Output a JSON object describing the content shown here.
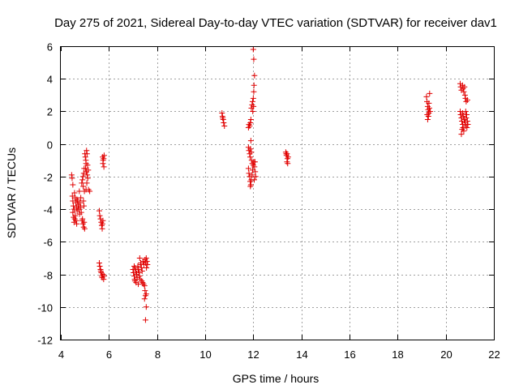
{
  "chart_data": {
    "type": "scatter",
    "title": "Day 275 of 2021, Sidereal Day-to-day VTEC variation (SDTVAR) for receiver dav1",
    "xlabel": "GPS time / hours",
    "ylabel": "SDTVAR / TECUs",
    "xlim": [
      4,
      22
    ],
    "ylim": [
      -12,
      6
    ],
    "xticks": [
      4,
      6,
      8,
      10,
      12,
      14,
      16,
      18,
      20,
      22
    ],
    "xtick_labels": [
      "4",
      "6",
      "8",
      "10",
      "12",
      "14",
      "16",
      "18",
      "20",
      "22"
    ],
    "yticks": [
      -12,
      -10,
      -8,
      -6,
      -4,
      -2,
      0,
      2,
      4,
      6
    ],
    "ytick_labels": [
      "-12",
      "-10",
      "-8",
      "-6",
      "-4",
      "-2",
      "0",
      "2",
      "4",
      "6"
    ],
    "grid": true,
    "marker": "+",
    "color": "#e00000",
    "series": [
      {
        "name": "dav1",
        "points": [
          [
            4.45,
            -1.9
          ],
          [
            4.47,
            -2.1
          ],
          [
            4.5,
            -2.5
          ],
          [
            4.48,
            -3.2
          ],
          [
            4.5,
            -3.5
          ],
          [
            4.52,
            -3.8
          ],
          [
            4.55,
            -4.0
          ],
          [
            4.5,
            -4.2
          ],
          [
            4.53,
            -4.5
          ],
          [
            4.55,
            -4.8
          ],
          [
            4.6,
            -3.3
          ],
          [
            4.62,
            -3.6
          ],
          [
            4.65,
            -3.9
          ],
          [
            4.68,
            -4.1
          ],
          [
            4.6,
            -4.4
          ],
          [
            4.63,
            -4.7
          ],
          [
            4.7,
            -3.5
          ],
          [
            4.72,
            -3.8
          ],
          [
            4.75,
            -4.0
          ],
          [
            4.78,
            -4.3
          ],
          [
            4.8,
            -3.6
          ],
          [
            4.82,
            -3.9
          ],
          [
            4.85,
            -4.2
          ],
          [
            4.57,
            -3.0
          ],
          [
            4.67,
            -3.4
          ],
          [
            4.73,
            -3.7
          ],
          [
            4.77,
            -2.9
          ],
          [
            4.83,
            -3.3
          ],
          [
            4.58,
            -4.6
          ],
          [
            4.66,
            -4.9
          ],
          [
            4.87,
            -2.4
          ],
          [
            4.9,
            -2.2
          ],
          [
            4.92,
            -2.0
          ],
          [
            4.95,
            -1.8
          ],
          [
            4.97,
            -1.5
          ],
          [
            4.93,
            -2.6
          ],
          [
            4.98,
            -2.9
          ],
          [
            4.94,
            -3.5
          ],
          [
            4.96,
            -3.8
          ],
          [
            4.88,
            -4.7
          ],
          [
            4.92,
            -4.9
          ],
          [
            4.95,
            -5.1
          ],
          [
            4.99,
            -5.2
          ],
          [
            4.9,
            -4.6
          ],
          [
            4.97,
            -4.8
          ],
          [
            5.0,
            -0.6
          ],
          [
            5.02,
            -0.8
          ],
          [
            5.04,
            -1.0
          ],
          [
            5.05,
            -1.2
          ],
          [
            5.07,
            -0.4
          ],
          [
            5.09,
            -0.6
          ],
          [
            5.03,
            -1.5
          ],
          [
            5.06,
            -1.7
          ],
          [
            5.1,
            -1.9
          ],
          [
            5.12,
            -2.1
          ],
          [
            5.08,
            -2.4
          ],
          [
            5.11,
            -1.3
          ],
          [
            5.14,
            -1.6
          ],
          [
            5.15,
            -2.8
          ],
          [
            5.2,
            -2.9
          ],
          [
            5.05,
            -2.8
          ],
          [
            5.6,
            -4.1
          ],
          [
            5.62,
            -4.4
          ],
          [
            5.65,
            -4.6
          ],
          [
            5.68,
            -4.8
          ],
          [
            5.7,
            -5.0
          ],
          [
            5.72,
            -5.2
          ],
          [
            5.75,
            -4.7
          ],
          [
            5.73,
            -4.9
          ],
          [
            5.6,
            -7.3
          ],
          [
            5.62,
            -7.5
          ],
          [
            5.65,
            -7.7
          ],
          [
            5.68,
            -7.9
          ],
          [
            5.7,
            -8.1
          ],
          [
            5.72,
            -8.2
          ],
          [
            5.75,
            -8.0
          ],
          [
            5.78,
            -8.3
          ],
          [
            5.8,
            -8.1
          ],
          [
            5.66,
            -7.8
          ],
          [
            5.74,
            -0.8
          ],
          [
            5.76,
            -1.0
          ],
          [
            5.78,
            -0.9
          ],
          [
            5.75,
            -1.2
          ],
          [
            5.79,
            -1.4
          ],
          [
            5.8,
            -0.7
          ],
          [
            7.0,
            -7.7
          ],
          [
            7.02,
            -7.9
          ],
          [
            7.05,
            -8.1
          ],
          [
            7.07,
            -8.3
          ],
          [
            7.1,
            -7.6
          ],
          [
            7.12,
            -7.8
          ],
          [
            7.15,
            -8.0
          ],
          [
            7.17,
            -8.2
          ],
          [
            7.2,
            -7.5
          ],
          [
            7.22,
            -7.7
          ],
          [
            7.25,
            -7.9
          ],
          [
            7.27,
            -8.1
          ],
          [
            7.3,
            -8.3
          ],
          [
            7.33,
            -7.4
          ],
          [
            7.35,
            -7.6
          ],
          [
            7.38,
            -7.8
          ],
          [
            7.4,
            -8.5
          ],
          [
            7.42,
            -7.2
          ],
          [
            7.45,
            -7.4
          ],
          [
            7.48,
            -8.7
          ],
          [
            7.5,
            -9.0
          ],
          [
            7.52,
            -9.3
          ],
          [
            7.48,
            -9.5
          ],
          [
            7.55,
            -9.2
          ],
          [
            7.5,
            -7.1
          ],
          [
            7.52,
            -7.3
          ],
          [
            7.55,
            -7.0
          ],
          [
            7.58,
            -7.2
          ],
          [
            7.6,
            -7.4
          ],
          [
            7.56,
            -7.6
          ],
          [
            7.28,
            -7.0
          ],
          [
            7.32,
            -7.3
          ],
          [
            7.36,
            -8.4
          ],
          [
            7.44,
            -8.6
          ],
          [
            7.05,
            -7.5
          ],
          [
            7.08,
            -8.4
          ],
          [
            7.13,
            -8.5
          ],
          [
            7.55,
            -10.0
          ],
          [
            7.52,
            -10.8
          ],
          [
            7.22,
            -8.6
          ],
          [
            10.7,
            1.9
          ],
          [
            10.72,
            1.7
          ],
          [
            10.75,
            1.5
          ],
          [
            10.77,
            1.3
          ],
          [
            10.8,
            1.1
          ],
          [
            10.73,
            1.6
          ],
          [
            11.8,
            1.0
          ],
          [
            11.82,
            1.2
          ],
          [
            11.85,
            1.1
          ],
          [
            11.88,
            1.3
          ],
          [
            11.9,
            1.5
          ],
          [
            11.92,
            2.2
          ],
          [
            11.95,
            2.4
          ],
          [
            11.97,
            2.6
          ],
          [
            12.0,
            2.8
          ],
          [
            12.02,
            3.2
          ],
          [
            12.03,
            3.6
          ],
          [
            12.05,
            4.2
          ],
          [
            12.02,
            5.2
          ],
          [
            12.0,
            5.8
          ],
          [
            11.98,
            2.0
          ],
          [
            12.01,
            2.3
          ],
          [
            11.8,
            -0.2
          ],
          [
            11.82,
            -0.4
          ],
          [
            11.85,
            -0.6
          ],
          [
            11.88,
            -0.3
          ],
          [
            11.9,
            0.2
          ],
          [
            11.87,
            -0.8
          ],
          [
            11.92,
            -0.5
          ],
          [
            11.8,
            -1.5
          ],
          [
            11.82,
            -1.8
          ],
          [
            11.85,
            -2.0
          ],
          [
            11.87,
            -2.3
          ],
          [
            11.9,
            -2.5
          ],
          [
            11.92,
            -2.2
          ],
          [
            11.95,
            -1.9
          ],
          [
            11.97,
            -1.6
          ],
          [
            12.0,
            -1.3
          ],
          [
            12.02,
            -1.1
          ],
          [
            12.05,
            -1.4
          ],
          [
            12.08,
            -1.7
          ],
          [
            12.1,
            -2.0
          ],
          [
            11.93,
            -1.0
          ],
          [
            11.96,
            -1.2
          ],
          [
            12.04,
            -2.2
          ],
          [
            11.88,
            -2.6
          ],
          [
            12.07,
            -1.1
          ],
          [
            13.35,
            -0.5
          ],
          [
            13.38,
            -0.7
          ],
          [
            13.4,
            -0.6
          ],
          [
            13.42,
            -0.9
          ],
          [
            13.45,
            -0.8
          ],
          [
            13.4,
            -1.1
          ],
          [
            13.43,
            -1.2
          ],
          [
            13.37,
            -0.6
          ],
          [
            19.2,
            2.9
          ],
          [
            19.22,
            2.6
          ],
          [
            19.25,
            2.3
          ],
          [
            19.27,
            2.1
          ],
          [
            19.3,
            1.9
          ],
          [
            19.28,
            1.7
          ],
          [
            19.25,
            1.5
          ],
          [
            19.3,
            2.5
          ],
          [
            19.32,
            2.2
          ],
          [
            19.35,
            2.0
          ],
          [
            19.33,
            3.1
          ],
          [
            19.23,
            1.8
          ],
          [
            20.6,
            3.7
          ],
          [
            20.62,
            3.5
          ],
          [
            20.65,
            3.3
          ],
          [
            20.7,
            3.6
          ],
          [
            20.72,
            3.4
          ],
          [
            20.75,
            3.2
          ],
          [
            20.8,
            3.0
          ],
          [
            20.82,
            2.8
          ],
          [
            20.85,
            2.6
          ],
          [
            20.78,
            3.5
          ],
          [
            20.9,
            2.7
          ],
          [
            20.6,
            2.0
          ],
          [
            20.62,
            1.8
          ],
          [
            20.65,
            1.6
          ],
          [
            20.67,
            1.4
          ],
          [
            20.7,
            1.2
          ],
          [
            20.72,
            1.0
          ],
          [
            20.75,
            0.8
          ],
          [
            20.7,
            1.9
          ],
          [
            20.73,
            1.7
          ],
          [
            20.77,
            1.5
          ],
          [
            20.8,
            1.3
          ],
          [
            20.82,
            1.1
          ],
          [
            20.85,
            1.6
          ],
          [
            20.87,
            1.8
          ],
          [
            20.9,
            1.4
          ],
          [
            20.92,
            1.2
          ],
          [
            20.65,
            0.6
          ],
          [
            20.68,
            0.9
          ],
          [
            20.83,
            2.0
          ],
          [
            20.88,
            1.0
          ]
        ]
      }
    ]
  }
}
